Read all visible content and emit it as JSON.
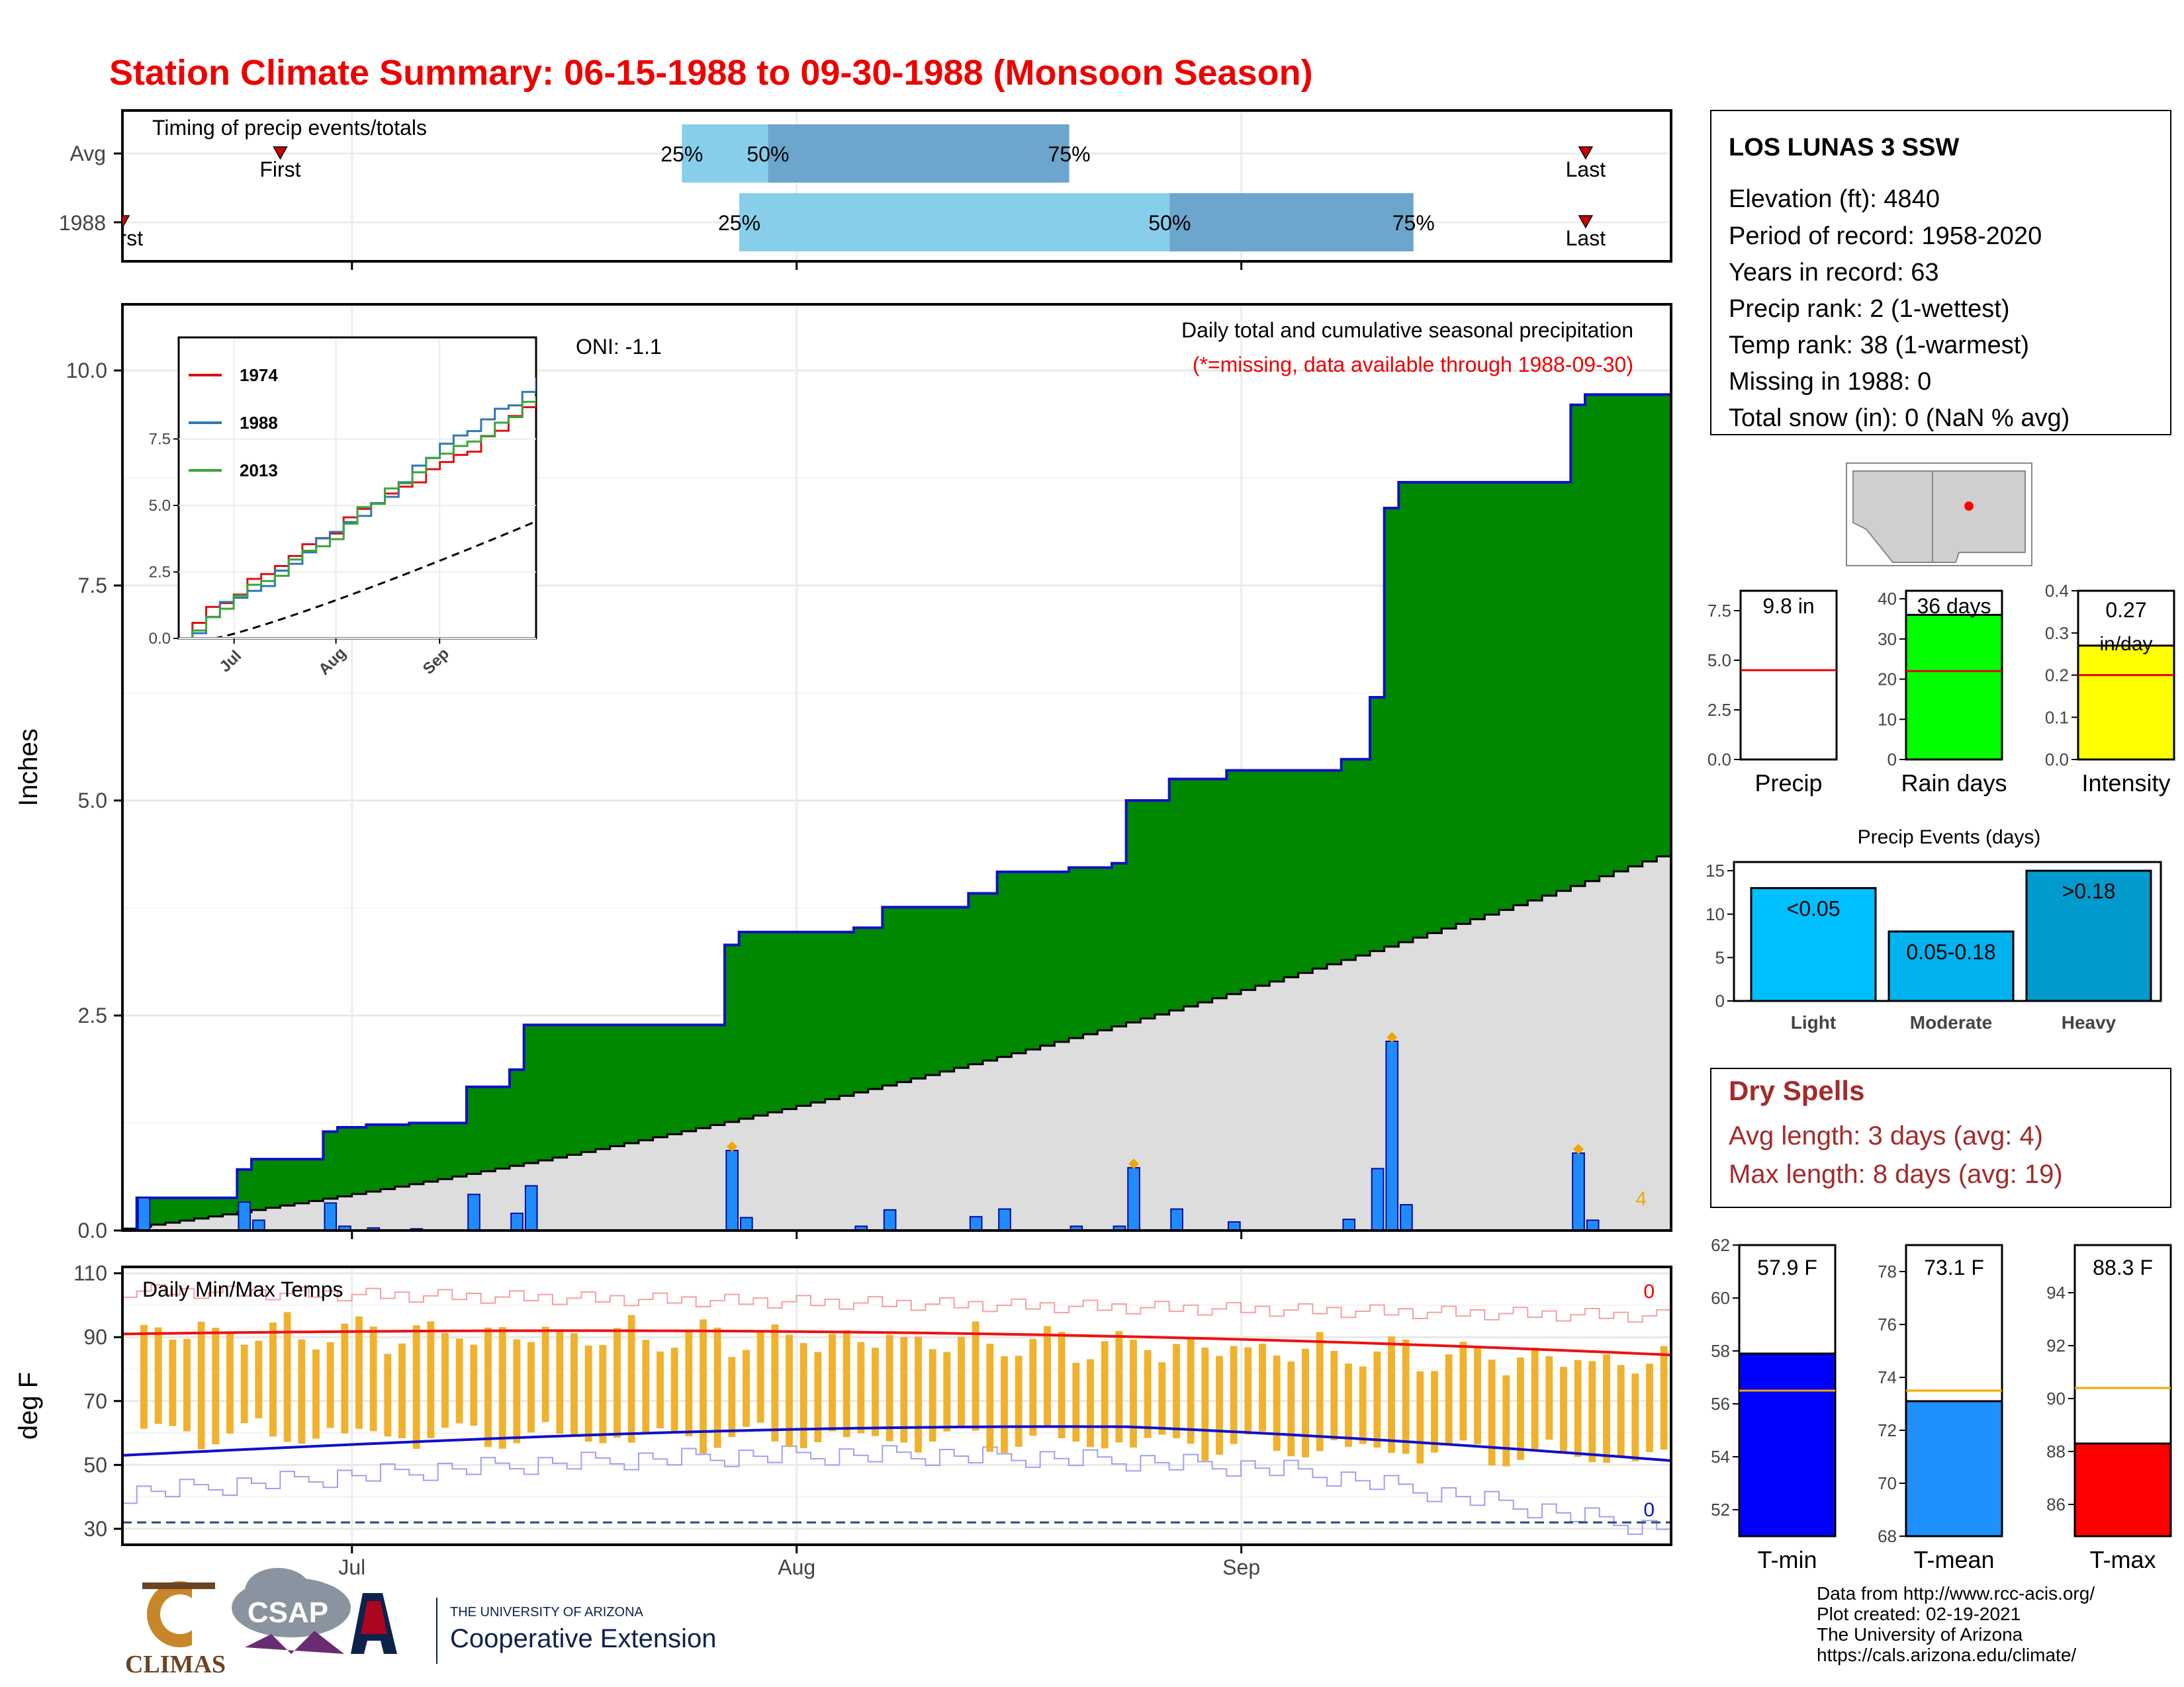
{
  "title": "Station Climate Summary: 06-15-1988 to 09-30-1988 (Monsoon Season)",
  "colors": {
    "title": "#ee0000",
    "cumulative_fill": "#008800",
    "normal_fill": "#dddddd",
    "step_line": "#1010c8",
    "daily_bar": "#1e8cff",
    "temp_bar": "#f0b22c",
    "tmax_line": "#ee1111",
    "tmin_line": "#1010cc",
    "rain_days": "#00ff00",
    "intensity": "#ffff00",
    "event_light": "#00bfff",
    "event_mod": "#00b2ee",
    "event_heavy": "#009acd",
    "tmin_panel": "#0000ff",
    "tmean_panel": "#1e90ff",
    "tmax_panel": "#ff0000",
    "dry_spells": "#a52a2a",
    "qtile_light": "#87ceeb",
    "qtile_dark": "#6ca6cd"
  },
  "timing_panel": {
    "label": "Timing of precip events/totals",
    "rows": [
      {
        "name": "Avg",
        "first_label": "First",
        "last_label": "Last",
        "first_date": "1988-06-26",
        "last_date": "1988-09-25",
        "q25_label": "25%",
        "q50_label": "50%",
        "q75_label": "75%",
        "q25": "1988-07-24",
        "q50": "1988-07-30",
        "q75": "1988-08-20"
      },
      {
        "name": "1988",
        "first_label": "First",
        "last_label": "Last",
        "first_date": "1988-06-15",
        "last_date": "1988-09-25",
        "q25_label": "25%",
        "q50_label": "50%",
        "q75_label": "75%",
        "q25": "1988-07-28",
        "q50": "1988-08-27",
        "q75": "1988-09-13"
      }
    ]
  },
  "main_panel": {
    "ylabel": "Inches",
    "oni": "ONI: -1.1",
    "subtitle": "Daily total and cumulative seasonal precipitation",
    "missing_note": "(*=missing, data available through 1988-09-30)",
    "count_label": "4",
    "yticks": [
      "0.0",
      "2.5",
      "5.0",
      "7.5",
      "10.0"
    ],
    "ylim": [
      0,
      10.7
    ]
  },
  "inset": {
    "legend": [
      "1974",
      "1988",
      "2013"
    ],
    "yticks": [
      "0.0",
      "2.5",
      "5.0",
      "7.5"
    ],
    "xticks": [
      "Jul",
      "Aug",
      "Sep"
    ]
  },
  "temp_panel": {
    "label": "Daily Min/Max Temps",
    "ylabel": "deg F",
    "yticks": [
      "30",
      "50",
      "70",
      "90",
      "110"
    ],
    "ylim": [
      25,
      112
    ],
    "max_count_label": "0",
    "min_count_label": "0",
    "freeze_line": 32
  },
  "x_axis": {
    "months": [
      "Jul",
      "Aug",
      "Sep"
    ]
  },
  "station": {
    "name": "LOS LUNAS 3 SSW",
    "lines": [
      "Elevation (ft): 4840",
      "Period of record: 1958-2020",
      "Years in record: 63",
      "Precip rank: 2 (1-wettest)",
      "Temp rank: 38 (1-warmest)",
      "Missing in 1988: 0",
      "Total snow (in): 0 (NaN % avg)"
    ]
  },
  "mini_bars": [
    {
      "label": "Precip",
      "value_label": "9.8 in",
      "value": 9.8,
      "avg": 4.5,
      "yticks": [
        "0.0",
        "2.5",
        "5.0",
        "7.5"
      ],
      "ymax": 8.5
    },
    {
      "label": "Rain days",
      "value_label": "36 days",
      "value": 36,
      "avg": 22,
      "yticks": [
        "0",
        "10",
        "20",
        "30",
        "40"
      ],
      "ymax": 42
    },
    {
      "label": "Intensity",
      "value_label": "0.27 in/day",
      "value": 0.27,
      "avg": 0.2,
      "yticks": [
        "0.0",
        "0.1",
        "0.2",
        "0.3",
        "0.4"
      ],
      "ymax": 0.4
    }
  ],
  "precip_events": {
    "title": "Precip Events (days)",
    "yticks": [
      "0",
      "5",
      "10",
      "15"
    ],
    "ymax": 16,
    "bars": [
      {
        "category": "Light",
        "bar_label": "<0.05",
        "value": 13
      },
      {
        "category": "Moderate",
        "bar_label": "0.05-0.18",
        "value": 8
      },
      {
        "category": "Heavy",
        "bar_label": ">0.18",
        "value": 15
      }
    ]
  },
  "dry_spells": {
    "title": "Dry Spells",
    "avg_line": "Avg length: 3 days (avg: 4)",
    "max_line": "Max length: 8 days (avg: 19)"
  },
  "temp_bars": [
    {
      "label": "T-min",
      "value_label": "57.9 F",
      "value": 57.9,
      "avg": 56.5,
      "ylim": [
        51,
        62
      ],
      "yticks": [
        "52",
        "54",
        "56",
        "58",
        "60",
        "62"
      ]
    },
    {
      "label": "T-mean",
      "value_label": "73.1 F",
      "value": 73.1,
      "avg": 73.5,
      "ylim": [
        68,
        79
      ],
      "yticks": [
        "68",
        "70",
        "72",
        "74",
        "76",
        "78"
      ]
    },
    {
      "label": "T-max",
      "value_label": "88.3 F",
      "value": 88.3,
      "avg": 90.4,
      "ylim": [
        84.8,
        95.8
      ],
      "yticks": [
        "86",
        "88",
        "90",
        "92",
        "94"
      ]
    }
  ],
  "footer": {
    "credits": [
      "Data from http://www.rcc-acis.org/",
      "Plot created: 02-19-2021",
      "The University of Arizona",
      "https://cals.arizona.edu/climate/"
    ],
    "logo_climas": "CLIMAS",
    "logo_csap": "CSAP",
    "logo_ua_line1": "THE UNIVERSITY OF ARIZONA",
    "logo_ua_line2": "Cooperative Extension"
  },
  "chart_data": {
    "type": "bar",
    "title": "Station Climate Summary: 06-15-1988 to 09-30-1988 (Monsoon Season)",
    "ylabel": "Inches",
    "xlim": [
      "1988-06-15",
      "1988-09-30"
    ],
    "daily_precip": [
      {
        "date": "1988-06-16",
        "value": 0.38
      },
      {
        "date": "1988-06-23",
        "value": 0.33
      },
      {
        "date": "1988-06-24",
        "value": 0.12
      },
      {
        "date": "1988-06-29",
        "value": 0.32
      },
      {
        "date": "1988-06-30",
        "value": 0.05
      },
      {
        "date": "1988-07-02",
        "value": 0.03
      },
      {
        "date": "1988-07-05",
        "value": 0.02
      },
      {
        "date": "1988-07-09",
        "value": 0.42
      },
      {
        "date": "1988-07-12",
        "value": 0.2
      },
      {
        "date": "1988-07-13",
        "value": 0.52
      },
      {
        "date": "1988-07-27",
        "value": 0.93
      },
      {
        "date": "1988-07-28",
        "value": 0.15
      },
      {
        "date": "1988-08-05",
        "value": 0.05
      },
      {
        "date": "1988-08-07",
        "value": 0.24
      },
      {
        "date": "1988-08-13",
        "value": 0.16
      },
      {
        "date": "1988-08-15",
        "value": 0.25
      },
      {
        "date": "1988-08-20",
        "value": 0.05
      },
      {
        "date": "1988-08-23",
        "value": 0.05
      },
      {
        "date": "1988-08-24",
        "value": 0.73
      },
      {
        "date": "1988-08-27",
        "value": 0.25
      },
      {
        "date": "1988-08-31",
        "value": 0.1
      },
      {
        "date": "1988-09-08",
        "value": 0.13
      },
      {
        "date": "1988-09-10",
        "value": 0.72
      },
      {
        "date": "1988-09-11",
        "value": 2.2
      },
      {
        "date": "1988-09-12",
        "value": 0.3
      },
      {
        "date": "1988-09-24",
        "value": 0.9
      },
      {
        "date": "1988-09-25",
        "value": 0.12
      }
    ],
    "normal_cumulative_end": 4.35,
    "season_total": 9.8,
    "inset_series": [
      {
        "name": "1974",
        "end_value": 8.9
      },
      {
        "name": "1988",
        "end_value": 9.8
      },
      {
        "name": "2013",
        "end_value": 9.1
      }
    ]
  }
}
